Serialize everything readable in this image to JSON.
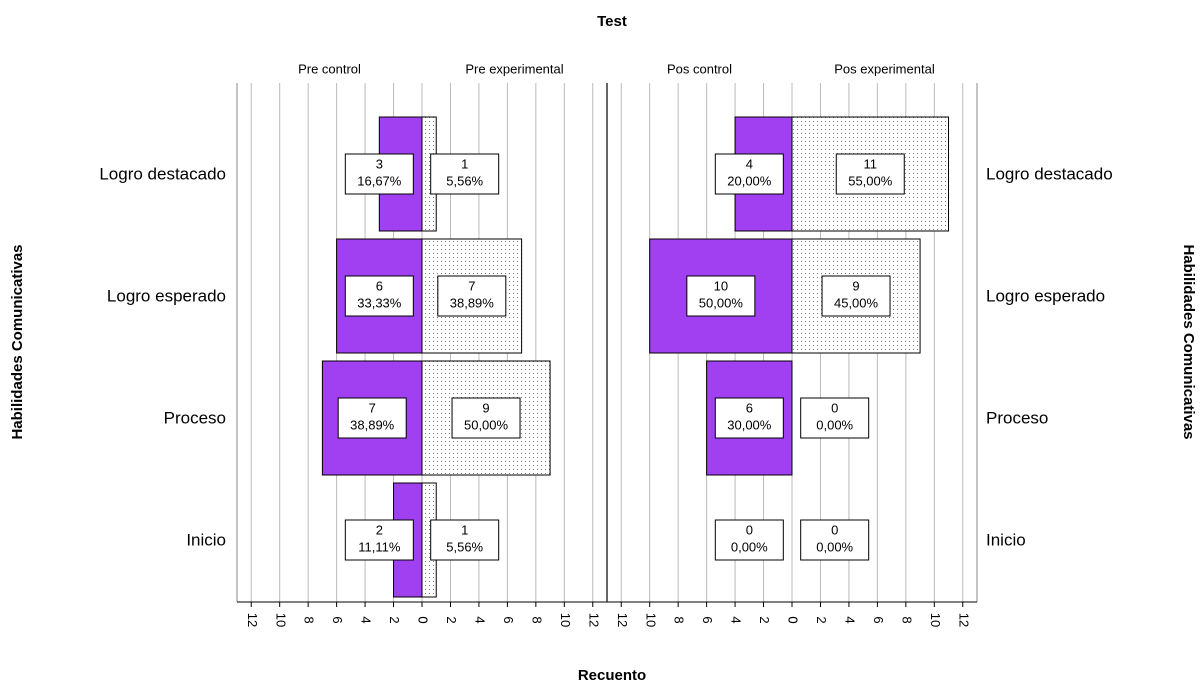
{
  "chart_data": {
    "type": "pyramid",
    "title": "Test",
    "xlabel": "Recuento",
    "ylabel": "Habilidades Comunicativas",
    "categories": [
      "Logro destacado",
      "Logro esperado",
      "Proceso",
      "Inicio"
    ],
    "xlim": [
      0,
      13
    ],
    "xticks": [
      0,
      2,
      4,
      6,
      8,
      10,
      12
    ],
    "grid": true,
    "panels": [
      {
        "series": [
          {
            "name": "Pre control",
            "color": "#a040f0",
            "side": "left",
            "values": [
              3,
              6,
              7,
              2
            ],
            "percent_labels": [
              "16,67%",
              "33,33%",
              "38,89%",
              "11,11%"
            ]
          },
          {
            "name": "Pre experimental",
            "color": "dotted",
            "side": "right",
            "values": [
              1,
              7,
              9,
              1
            ],
            "percent_labels": [
              "5,56%",
              "38,89%",
              "50,00%",
              "5,56%"
            ]
          }
        ]
      },
      {
        "series": [
          {
            "name": "Pos control",
            "color": "#a040f0",
            "side": "left",
            "values": [
              4,
              10,
              6,
              0
            ],
            "percent_labels": [
              "20,00%",
              "50,00%",
              "30,00%",
              "0,00%"
            ]
          },
          {
            "name": "Pos experimental",
            "color": "dotted",
            "side": "right",
            "values": [
              11,
              9,
              0,
              0
            ],
            "percent_labels": [
              "55,00%",
              "45,00%",
              "0,00%",
              "0,00%"
            ]
          }
        ]
      }
    ]
  }
}
